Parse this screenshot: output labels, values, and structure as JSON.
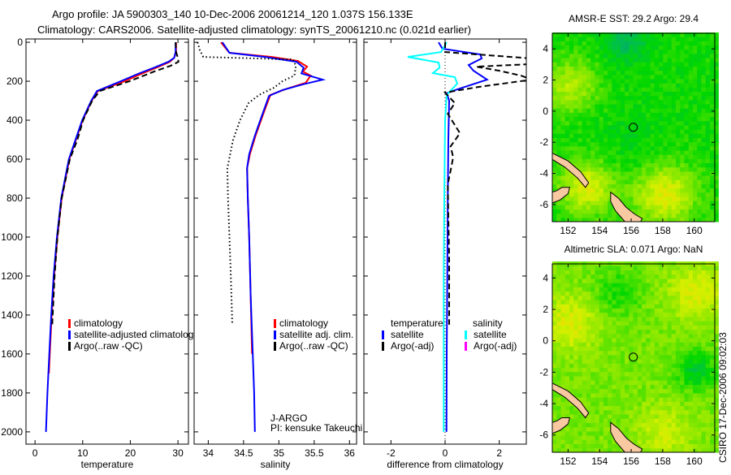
{
  "header": {
    "line1": "Argo profile: JA 5900303_140 10-Dec-2006 20061214_120 1.037S 156.133E",
    "line2": "Climatology: CARS2006. Satellite-adjusted climatology: synTS_20061210.nc (0.021d earlier)"
  },
  "side_stamp": "CSIRO 17-Dec-2006 09:02:03",
  "colors": {
    "climatology": "#ff0000",
    "satellite": "#0000ff",
    "argo": "#000000",
    "sal_satellite": "#00ffff",
    "sal_argo": "#ff00ff"
  },
  "chart_data": [
    {
      "type": "line",
      "id": "temperature",
      "xlabel": "temperature",
      "ylabel": "",
      "xlim": [
        -1.9,
        32.2
      ],
      "ylim": [
        2063,
        -17
      ],
      "xticks": [
        0,
        10,
        20,
        30
      ],
      "yticks": [
        0,
        200,
        400,
        600,
        800,
        1000,
        1200,
        1400,
        1600,
        1800,
        2000
      ],
      "legend": {
        "position": "lower-center",
        "entries": [
          "climatology",
          "satellite-adjusted climatology",
          "Argo(..raw -QC)"
        ]
      },
      "series": [
        {
          "name": "climatology",
          "color": "#ff0000",
          "style": "solid",
          "depth": [
            0,
            50,
            80,
            100,
            130,
            160,
            200,
            250,
            300,
            400,
            500,
            600,
            800,
            1000,
            1200,
            1400,
            1600,
            1700
          ],
          "values": [
            29.6,
            29.6,
            29.2,
            28.3,
            25.5,
            22.5,
            18.8,
            13.2,
            11.9,
            10.0,
            8.6,
            7.2,
            5.6,
            4.7,
            4.0,
            3.5,
            3.1,
            2.9
          ]
        },
        {
          "name": "satellite-adjusted climatology",
          "color": "#0000ff",
          "style": "solid",
          "depth": [
            0,
            50,
            80,
            100,
            130,
            160,
            200,
            250,
            300,
            400,
            500,
            600,
            800,
            1000,
            1200,
            1400,
            1600,
            1800,
            2000
          ],
          "values": [
            29.5,
            29.5,
            29.2,
            28.0,
            25.0,
            21.8,
            18.0,
            13.0,
            11.8,
            9.9,
            8.5,
            7.1,
            5.5,
            4.6,
            3.9,
            3.4,
            3.0,
            2.6,
            2.3
          ]
        },
        {
          "name": "Argo(..raw -QC)",
          "color": "#000000",
          "style": "dashed",
          "depth": [
            0,
            50,
            80,
            100,
            120,
            150,
            200,
            250,
            300,
            400,
            500,
            600,
            800,
            1000,
            1200,
            1450
          ],
          "values": [
            29.5,
            29.6,
            30.0,
            30.1,
            28.5,
            25.0,
            19.8,
            13.6,
            12.0,
            10.1,
            8.9,
            7.3,
            5.6,
            4.7,
            4.1,
            3.6
          ]
        }
      ]
    },
    {
      "type": "line",
      "id": "salinity",
      "xlabel": "salinity",
      "xlim": [
        33.8,
        36.1
      ],
      "ylim": [
        2063,
        -17
      ],
      "xticks": [
        34,
        34.5,
        35,
        35.5,
        36
      ],
      "legend": {
        "position": "lower-center",
        "entries": [
          "climatology",
          "satellite adj. clim.",
          "Argo(..raw -QC)"
        ]
      },
      "annotation": [
        "J-ARGO",
        "PI: kensuke Takeuchi"
      ],
      "series": [
        {
          "name": "climatology",
          "color": "#ff0000",
          "style": "solid",
          "depth": [
            0,
            54,
            75,
            96,
            125,
            150,
            171,
            208,
            240,
            270,
            367,
            479,
            575,
            646,
            800,
            1000,
            1300,
            1600
          ],
          "values": [
            34.18,
            34.3,
            34.9,
            35.27,
            35.4,
            35.34,
            35.45,
            35.38,
            35.1,
            34.88,
            34.78,
            34.67,
            34.59,
            34.55,
            34.56,
            34.58,
            34.6,
            34.62
          ]
        },
        {
          "name": "satellite adj. clim.",
          "color": "#0000ff",
          "style": "solid",
          "depth": [
            0,
            54,
            75,
            100,
            130,
            160,
            192,
            215,
            245,
            275,
            367,
            479,
            575,
            646,
            800,
            1000,
            1300,
            1600,
            1800,
            2000
          ],
          "values": [
            34.2,
            34.3,
            34.8,
            35.25,
            35.35,
            35.32,
            35.62,
            35.35,
            35.05,
            34.86,
            34.77,
            34.66,
            34.58,
            34.55,
            34.56,
            34.58,
            34.6,
            34.63,
            34.65,
            34.66
          ]
        },
        {
          "name": "Argo(..raw -QC)",
          "color": "#000000",
          "style": "dotted",
          "depth": [
            0,
            40,
            75,
            88,
            120,
            171,
            200,
            233,
            270,
            312,
            400,
            504,
            646,
            800,
            1000,
            1200,
            1450
          ],
          "values": [
            33.85,
            33.88,
            33.93,
            35.2,
            35.24,
            35.22,
            35.05,
            34.93,
            34.72,
            34.57,
            34.45,
            34.35,
            34.27,
            34.28,
            34.3,
            34.32,
            34.34
          ]
        }
      ]
    },
    {
      "type": "line",
      "id": "difference",
      "xlabel": "difference from climatology",
      "xlim": [
        -3,
        3
      ],
      "ylim": [
        2063,
        -17
      ],
      "xticks": [
        -2,
        0,
        2
      ],
      "legend": {
        "position": "lower-center",
        "temperature_header": "temperature",
        "salinity_header": "salinity",
        "entries": [
          "satellite",
          "Argo(-adj)",
          "satellite",
          "Argo(-adj)"
        ]
      },
      "series": [
        {
          "name": "temperature satellite",
          "color": "#0000ff",
          "style": "solid",
          "depth": [
            0,
            33,
            62,
            83,
            117,
            146,
            192,
            242,
            262,
            300,
            500,
            800,
            1200,
            1600,
            2000
          ],
          "values": [
            -0.24,
            -0.1,
            1.3,
            1.35,
            0.87,
            1.05,
            1.55,
            0.45,
            0.06,
            0.15,
            0.12,
            0.1,
            0.08,
            0.06,
            0.05
          ]
        },
        {
          "name": "salinity satellite",
          "color": "#00ffff",
          "style": "solid",
          "depth": [
            0,
            50,
            75,
            104,
            130,
            158,
            179,
            212,
            270,
            400,
            800,
            1200,
            1600,
            2000
          ],
          "values": [
            0.06,
            -0.15,
            -1.38,
            -0.24,
            -0.2,
            -0.45,
            0.36,
            0.45,
            0.06,
            0.0,
            -0.03,
            -0.05,
            -0.05,
            -0.05
          ]
        },
        {
          "name": "temperature Argo(-adj)",
          "color": "#000000",
          "style": "dashed",
          "depth": [
            0,
            50,
            83,
            100,
            112,
            125,
            146,
            171,
            192,
            229,
            258,
            312,
            367,
            467,
            535,
            590,
            660,
            729,
            900,
            1100,
            1300,
            1450
          ],
          "values": [
            0,
            0,
            3.2,
            3.3,
            3.2,
            1.15,
            2.0,
            2.8,
            3.2,
            1.25,
            0,
            0.36,
            0.1,
            0.55,
            0.2,
            0.3,
            0.2,
            0.1,
            0.12,
            0.15,
            0.15,
            0.15
          ]
        }
      ]
    },
    {
      "type": "heatmap",
      "id": "sst-map",
      "title": "AMSR-E SST: 29.2 Argo: 29.4",
      "xlim": [
        151.0,
        161.3
      ],
      "ylim": [
        -7.1,
        5.0
      ],
      "xticks": [
        152,
        154,
        156,
        158,
        160
      ],
      "yticks": [
        4,
        2,
        0,
        -2,
        -4,
        -6
      ],
      "float_position": [
        156.133,
        -1.037
      ]
    },
    {
      "type": "heatmap",
      "id": "sla-map",
      "title": "Altimetric SLA: 0.071 Argo: NaN",
      "xlim": [
        151.0,
        161.3
      ],
      "ylim": [
        -7.1,
        4.9
      ],
      "xticks": [
        152,
        154,
        156,
        158,
        160
      ],
      "yticks": [
        4,
        2,
        0,
        -2,
        -4,
        -6
      ],
      "float_position": [
        156.133,
        -1.037
      ]
    }
  ]
}
